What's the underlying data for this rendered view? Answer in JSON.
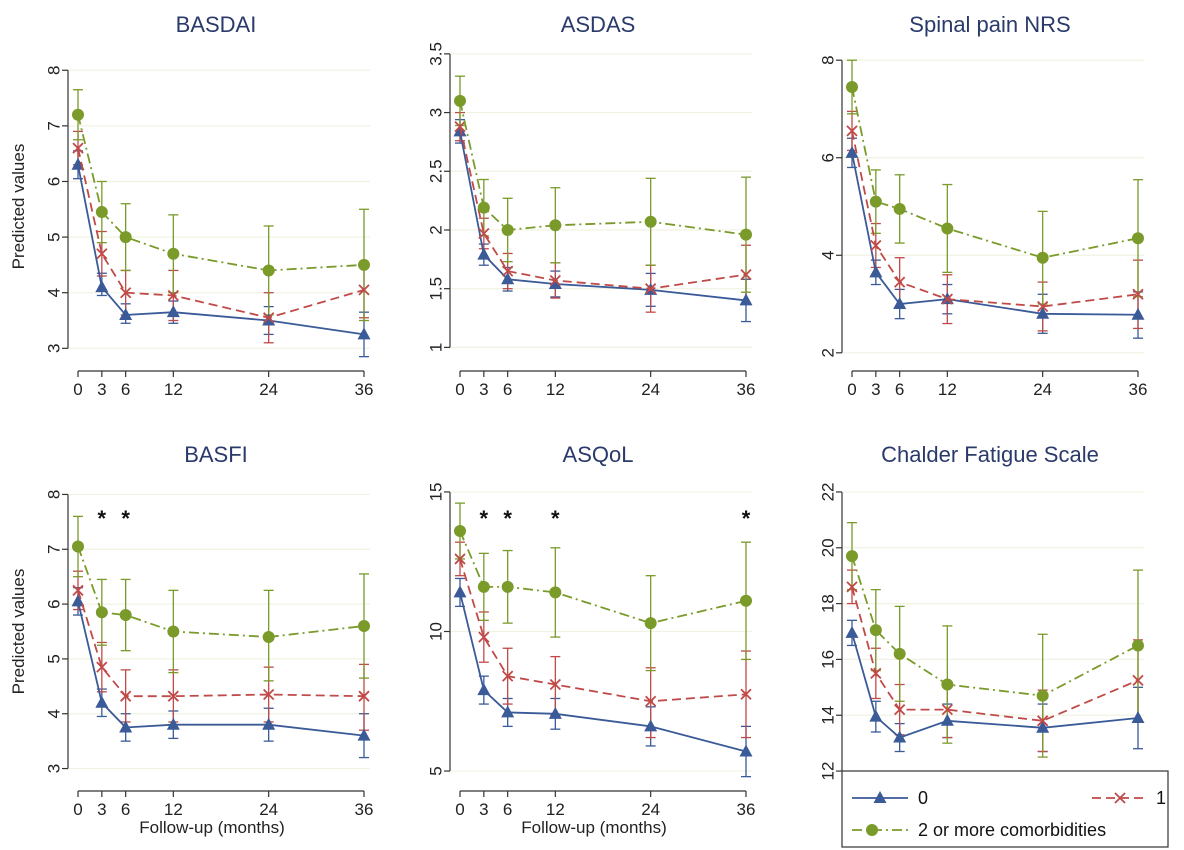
{
  "colors": {
    "series_0": "#3a5a98",
    "series_1": "#c04a48",
    "series_2": "#7a9a2a",
    "grid": "#f0f3e2",
    "axis": "#333333"
  },
  "legend": {
    "entries": [
      "0",
      "1",
      "2 or more comorbidities"
    ],
    "placement": "bottom-right"
  },
  "chart_data": [
    {
      "type": "line",
      "title": "BASDAI",
      "xlabel": "",
      "ylabel": "Predicted values",
      "x": [
        0,
        3,
        6,
        12,
        24,
        36
      ],
      "xticks": [
        "0",
        "3",
        "6",
        "12",
        "24",
        "36"
      ],
      "yticks": [
        "3",
        "4",
        "5",
        "6",
        "7",
        "8"
      ],
      "ylim": [
        2.7,
        8.4
      ],
      "grid": true,
      "stars": [],
      "series": [
        {
          "values": [
            6.3,
            4.1,
            3.6,
            3.65,
            3.5,
            3.25
          ],
          "ci": [
            [
              6.05,
              6.55
            ],
            [
              3.95,
              4.35
            ],
            [
              3.45,
              3.8
            ],
            [
              3.45,
              3.85
            ],
            [
              3.25,
              3.75
            ],
            [
              2.85,
              3.65
            ]
          ]
        },
        {
          "values": [
            6.6,
            4.7,
            4.0,
            3.95,
            3.55,
            4.05
          ],
          "ci": [
            [
              6.3,
              6.9
            ],
            [
              4.3,
              5.1
            ],
            [
              3.6,
              4.4
            ],
            [
              3.5,
              4.4
            ],
            [
              3.1,
              4.0
            ],
            [
              3.55,
              4.55
            ]
          ]
        },
        {
          "values": [
            7.2,
            5.45,
            5.0,
            4.7,
            4.4,
            4.5
          ],
          "ci": [
            [
              6.75,
              7.65
            ],
            [
              4.9,
              6.0
            ],
            [
              4.4,
              5.6
            ],
            [
              4.0,
              5.4
            ],
            [
              3.6,
              5.2
            ],
            [
              3.5,
              5.5
            ]
          ]
        }
      ]
    },
    {
      "type": "line",
      "title": "ASDAS",
      "xlabel": "",
      "ylabel": "",
      "x": [
        0,
        3,
        6,
        12,
        24,
        36
      ],
      "xticks": [
        "0",
        "3",
        "6",
        "12",
        "24",
        "36"
      ],
      "yticks": [
        "1",
        "1.5",
        "2",
        "2.5",
        "3",
        "3.5"
      ],
      "ylim": [
        0.85,
        3.55
      ],
      "grid": true,
      "stars": [],
      "series": [
        {
          "values": [
            2.84,
            1.79,
            1.58,
            1.54,
            1.49,
            1.4
          ],
          "ci": [
            [
              2.74,
              2.94
            ],
            [
              1.7,
              1.88
            ],
            [
              1.48,
              1.68
            ],
            [
              1.43,
              1.65
            ],
            [
              1.35,
              1.63
            ],
            [
              1.22,
              1.58
            ]
          ]
        },
        {
          "values": [
            2.88,
            1.97,
            1.65,
            1.57,
            1.5,
            1.62
          ],
          "ci": [
            [
              2.76,
              3.0
            ],
            [
              1.84,
              2.1
            ],
            [
              1.5,
              1.8
            ],
            [
              1.42,
              1.72
            ],
            [
              1.3,
              1.7
            ],
            [
              1.37,
              1.87
            ]
          ]
        },
        {
          "values": [
            3.1,
            2.19,
            2.0,
            2.04,
            2.07,
            1.96
          ],
          "ci": [
            [
              2.89,
              3.31
            ],
            [
              1.95,
              2.43
            ],
            [
              1.73,
              2.27
            ],
            [
              1.72,
              2.36
            ],
            [
              1.7,
              2.44
            ],
            [
              1.47,
              2.45
            ]
          ]
        }
      ]
    },
    {
      "type": "line",
      "title": "Spinal pain NRS",
      "xlabel": "",
      "ylabel": "",
      "x": [
        0,
        3,
        6,
        12,
        24,
        36
      ],
      "xticks": [
        "0",
        "3",
        "6",
        "12",
        "24",
        "36"
      ],
      "yticks": [
        "2",
        "4",
        "6",
        "8"
      ],
      "ylim": [
        1.75,
        8.25
      ],
      "grid": true,
      "stars": [],
      "series": [
        {
          "values": [
            6.1,
            3.65,
            3.0,
            3.1,
            2.8,
            2.78
          ],
          "ci": [
            [
              5.8,
              6.4
            ],
            [
              3.4,
              3.9
            ],
            [
              2.7,
              3.3
            ],
            [
              2.8,
              3.4
            ],
            [
              2.4,
              3.2
            ],
            [
              2.3,
              3.25
            ]
          ]
        },
        {
          "values": [
            6.55,
            4.2,
            3.45,
            3.1,
            2.95,
            3.2
          ],
          "ci": [
            [
              6.15,
              6.95
            ],
            [
              3.75,
              4.65
            ],
            [
              2.95,
              3.95
            ],
            [
              2.6,
              3.6
            ],
            [
              2.45,
              3.45
            ],
            [
              2.5,
              3.9
            ]
          ]
        },
        {
          "values": [
            7.45,
            5.1,
            4.95,
            4.55,
            3.95,
            4.35
          ],
          "ci": [
            [
              6.9,
              8.0
            ],
            [
              4.45,
              5.75
            ],
            [
              4.25,
              5.65
            ],
            [
              3.65,
              5.45
            ],
            [
              3.0,
              4.9
            ],
            [
              3.15,
              5.55
            ]
          ]
        }
      ]
    },
    {
      "type": "line",
      "title": "BASFI",
      "xlabel": "Follow-up (months)",
      "ylabel": "Predicted values",
      "x": [
        0,
        3,
        6,
        12,
        24,
        36
      ],
      "xticks": [
        "0",
        "3",
        "6",
        "12",
        "24",
        "36"
      ],
      "yticks": [
        "3",
        "4",
        "5",
        "6",
        "7",
        "8"
      ],
      "ylim": [
        2.7,
        8.3
      ],
      "grid": true,
      "stars": [
        3,
        6
      ],
      "series": [
        {
          "values": [
            6.05,
            4.2,
            3.75,
            3.8,
            3.8,
            3.6
          ],
          "ci": [
            [
              5.8,
              6.3
            ],
            [
              3.95,
              4.45
            ],
            [
              3.5,
              4.0
            ],
            [
              3.55,
              4.05
            ],
            [
              3.5,
              4.1
            ],
            [
              3.2,
              4.0
            ]
          ]
        },
        {
          "values": [
            6.25,
            4.85,
            4.32,
            4.32,
            4.35,
            4.32
          ],
          "ci": [
            [
              5.9,
              6.6
            ],
            [
              4.4,
              5.3
            ],
            [
              3.85,
              4.8
            ],
            [
              3.85,
              4.8
            ],
            [
              3.85,
              4.85
            ],
            [
              3.7,
              4.9
            ]
          ]
        },
        {
          "values": [
            7.05,
            5.85,
            5.8,
            5.5,
            5.4,
            5.6
          ],
          "ci": [
            [
              6.5,
              7.6
            ],
            [
              5.25,
              6.45
            ],
            [
              5.15,
              6.45
            ],
            [
              4.75,
              6.25
            ],
            [
              4.6,
              6.25
            ],
            [
              4.65,
              6.55
            ]
          ]
        }
      ]
    },
    {
      "type": "line",
      "title": "ASQoL",
      "xlabel": "Follow-up (months)",
      "ylabel": "",
      "x": [
        0,
        3,
        6,
        12,
        24,
        36
      ],
      "xticks": [
        "0",
        "3",
        "6",
        "12",
        "24",
        "36"
      ],
      "yticks": [
        "5",
        "10",
        "15"
      ],
      "ylim": [
        4.5,
        15.5
      ],
      "grid": true,
      "stars": [
        3,
        6,
        12,
        36
      ],
      "series": [
        {
          "values": [
            11.4,
            7.9,
            7.1,
            7.05,
            6.6,
            5.7
          ],
          "ci": [
            [
              10.9,
              11.9
            ],
            [
              7.4,
              8.4
            ],
            [
              6.6,
              7.6
            ],
            [
              6.5,
              7.6
            ],
            [
              5.9,
              7.3
            ],
            [
              4.8,
              6.6
            ]
          ]
        },
        {
          "values": [
            12.6,
            9.8,
            8.4,
            8.1,
            7.5,
            7.75
          ],
          "ci": [
            [
              12.0,
              13.2
            ],
            [
              8.9,
              10.7
            ],
            [
              7.4,
              9.4
            ],
            [
              7.0,
              9.1
            ],
            [
              6.2,
              8.7
            ],
            [
              6.2,
              9.3
            ]
          ]
        },
        {
          "values": [
            13.6,
            11.6,
            11.6,
            11.4,
            10.3,
            11.1
          ],
          "ci": [
            [
              12.6,
              14.6
            ],
            [
              10.4,
              12.8
            ],
            [
              10.3,
              12.9
            ],
            [
              9.8,
              13.0
            ],
            [
              8.6,
              12.0
            ],
            [
              9.0,
              13.2
            ]
          ]
        }
      ]
    },
    {
      "type": "line",
      "title": "Chalder Fatigue Scale",
      "xlabel": "",
      "ylabel": "",
      "x": [
        0,
        3,
        6,
        12,
        24,
        36
      ],
      "xticks": [
        "0",
        "3",
        "6",
        "12",
        "24",
        "36"
      ],
      "yticks": [
        "12",
        "14",
        "16",
        "18",
        "20",
        "22"
      ],
      "ylim": [
        11.5,
        22.5
      ],
      "grid": true,
      "stars": [],
      "series": [
        {
          "values": [
            16.95,
            13.95,
            13.2,
            13.8,
            13.55,
            13.9
          ],
          "ci": [
            [
              16.5,
              17.4
            ],
            [
              13.4,
              14.5
            ],
            [
              12.7,
              13.7
            ],
            [
              13.2,
              14.4
            ],
            [
              12.7,
              14.4
            ],
            [
              12.8,
              15.0
            ]
          ]
        },
        {
          "values": [
            18.6,
            15.5,
            14.2,
            14.2,
            13.8,
            15.25
          ],
          "ci": [
            [
              18.0,
              19.2
            ],
            [
              14.6,
              16.4
            ],
            [
              13.3,
              15.1
            ],
            [
              13.2,
              15.2
            ],
            [
              12.7,
              14.9
            ],
            [
              13.8,
              16.7
            ]
          ]
        },
        {
          "values": [
            19.7,
            17.05,
            16.2,
            15.1,
            14.7,
            16.5
          ],
          "ci": [
            [
              18.5,
              20.9
            ],
            [
              15.6,
              18.5
            ],
            [
              14.5,
              17.9
            ],
            [
              13.0,
              17.2
            ],
            [
              12.5,
              16.9
            ],
            [
              13.8,
              19.2
            ]
          ]
        }
      ]
    }
  ]
}
